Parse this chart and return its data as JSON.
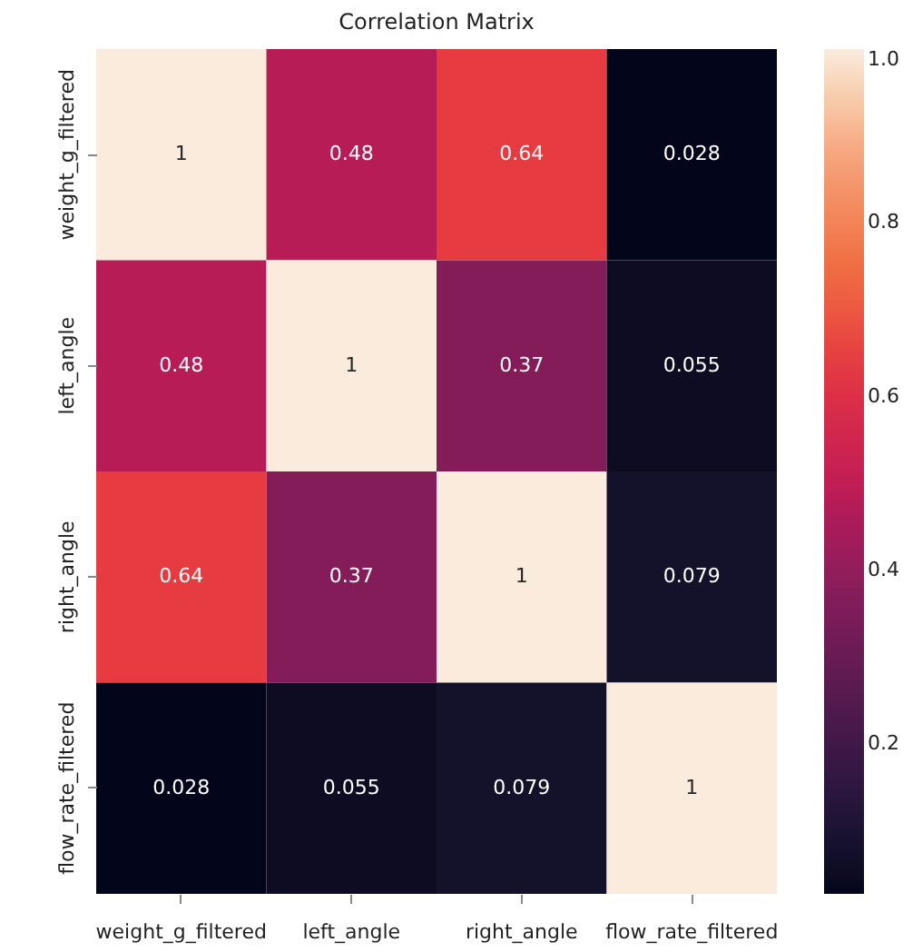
{
  "chart_data": {
    "type": "heatmap",
    "title": "Correlation Matrix",
    "categories": [
      "weight_g_filtered",
      "left_angle",
      "right_angle",
      "flow_rate_filtered"
    ],
    "y_categories": [
      "weight_g_filtered",
      "left_angle",
      "right_angle",
      "flow_rate_filtered"
    ],
    "cells": [
      [
        1,
        0.48,
        0.64,
        0.028
      ],
      [
        0.48,
        1,
        0.37,
        0.055
      ],
      [
        0.64,
        0.37,
        1,
        0.079
      ],
      [
        0.028,
        0.055,
        0.079,
        1
      ]
    ],
    "clim": [
      0.028,
      1
    ],
    "cticks": [
      0.2,
      0.4,
      0.6,
      0.8,
      {
        "value": 1,
        "label": "1.0"
      }
    ],
    "data_labels": true
  }
}
